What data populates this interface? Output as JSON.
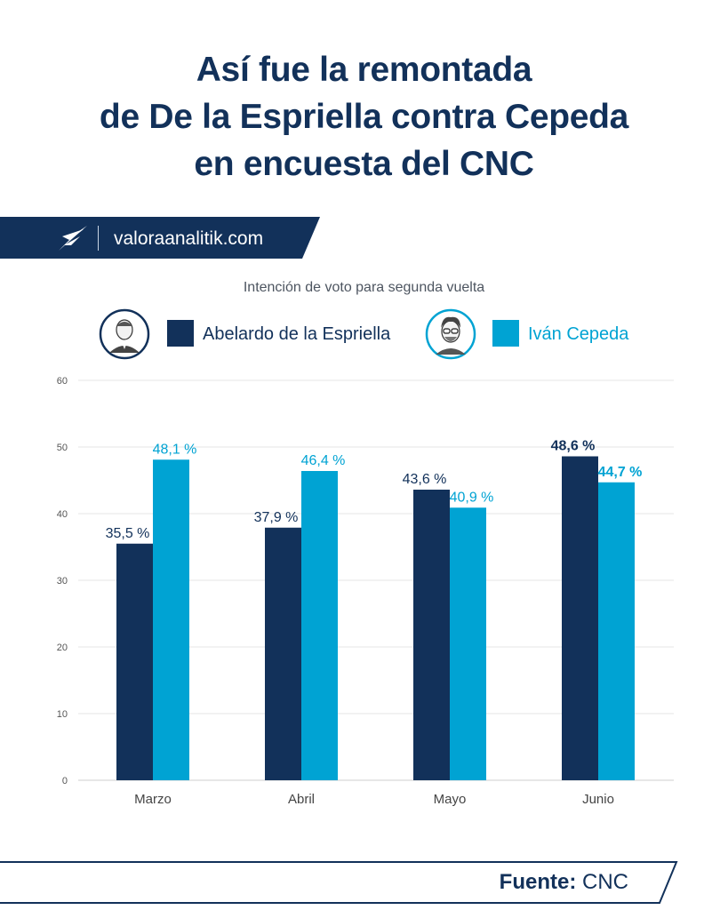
{
  "title_lines": [
    "Así fue la remontada",
    "de De la Espriella contra Cepeda",
    "en encuesta del CNC"
  ],
  "brand": {
    "name": "valoraanalitik.com",
    "logo_icon": "valora-logo-icon"
  },
  "subtitle": "Intención de voto para segunda vuelta",
  "legend": [
    {
      "name": "Abelardo de la Espriella",
      "color": "#12315a",
      "avatar_icon": "person-portrait-icon"
    },
    {
      "name": "Iván Cepeda",
      "color": "#00a3d3",
      "avatar_icon": "person-portrait-icon"
    }
  ],
  "chart_data": {
    "type": "bar",
    "categories": [
      "Marzo",
      "Abril",
      "Mayo",
      "Junio"
    ],
    "series": [
      {
        "name": "Abelardo de la Espriella",
        "color": "#12315a",
        "values": [
          35.5,
          37.9,
          43.6,
          48.6
        ],
        "labels": [
          "35,5 %",
          "37,9 %",
          "43,6 %",
          "48,6 %"
        ]
      },
      {
        "name": "Iván Cepeda",
        "color": "#00a3d3",
        "values": [
          48.1,
          46.4,
          40.9,
          44.7
        ],
        "labels": [
          "48,1 %",
          "46,4 %",
          "40,9 %",
          "44,7 %"
        ]
      }
    ],
    "ylim": [
      0,
      60
    ],
    "yticks": [
      0,
      10,
      20,
      30,
      40,
      50,
      60
    ],
    "grid": true,
    "winner_bold": [
      false,
      false,
      false,
      true
    ]
  },
  "footer": {
    "source_label": "Fuente:",
    "source_value": "CNC"
  }
}
